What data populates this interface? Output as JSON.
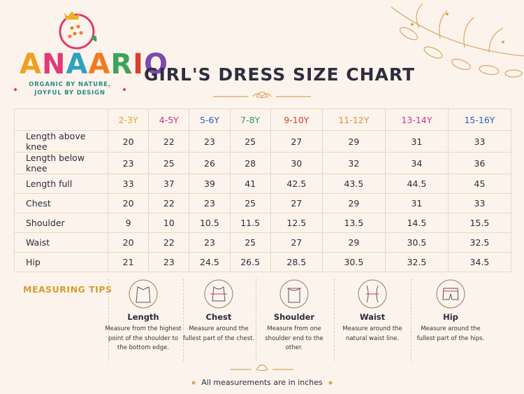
{
  "brand": {
    "name": "ANAARIO",
    "tagline": [
      "ORGANIC BY NATURE,",
      "JOYFUL BY DESIGN"
    ]
  },
  "title": "GIRL'S DRESS SIZE CHART",
  "table": {
    "columns": [
      "2-3Y",
      "4-5Y",
      "5-6Y",
      "7-8Y",
      "9-10Y",
      "11-12Y",
      "13-14Y",
      "15-16Y"
    ],
    "rows": [
      {
        "label": "Length above knee",
        "values": [
          20,
          22,
          23,
          25,
          27,
          29,
          31,
          33
        ]
      },
      {
        "label": "Length below knee",
        "values": [
          23,
          25,
          26,
          28,
          30,
          32,
          34,
          36
        ]
      },
      {
        "label": "Length full",
        "values": [
          33,
          37,
          39,
          41,
          42.5,
          43.5,
          44.5,
          45
        ]
      },
      {
        "label": "Chest",
        "values": [
          20,
          22,
          23,
          25,
          27,
          29,
          31,
          33
        ]
      },
      {
        "label": "Shoulder",
        "values": [
          9,
          10,
          10.5,
          11.5,
          12.5,
          13.5,
          14.5,
          15.5
        ]
      },
      {
        "label": "Waist",
        "values": [
          20,
          22,
          23,
          25,
          27,
          29,
          30.5,
          32.5
        ]
      },
      {
        "label": "Hip",
        "values": [
          21,
          23,
          24.5,
          26.5,
          28.5,
          30.5,
          32.5,
          34.5
        ]
      }
    ]
  },
  "tips": {
    "title": "MEASURING TIPS",
    "items": [
      {
        "title": "Length",
        "text": "Measure from the highest point of the shoulder to the bottom edge."
      },
      {
        "title": "Chest",
        "text": "Measure around the fullest part of the chest."
      },
      {
        "title": "Shoulder",
        "text": "Measure from one shoulder end to the other."
      },
      {
        "title": "Waist",
        "text": "Measure around the natural waist line."
      },
      {
        "title": "Hip",
        "text": "Measure around the fullest part of the hips."
      }
    ]
  },
  "footer": "All measurements are in inches"
}
